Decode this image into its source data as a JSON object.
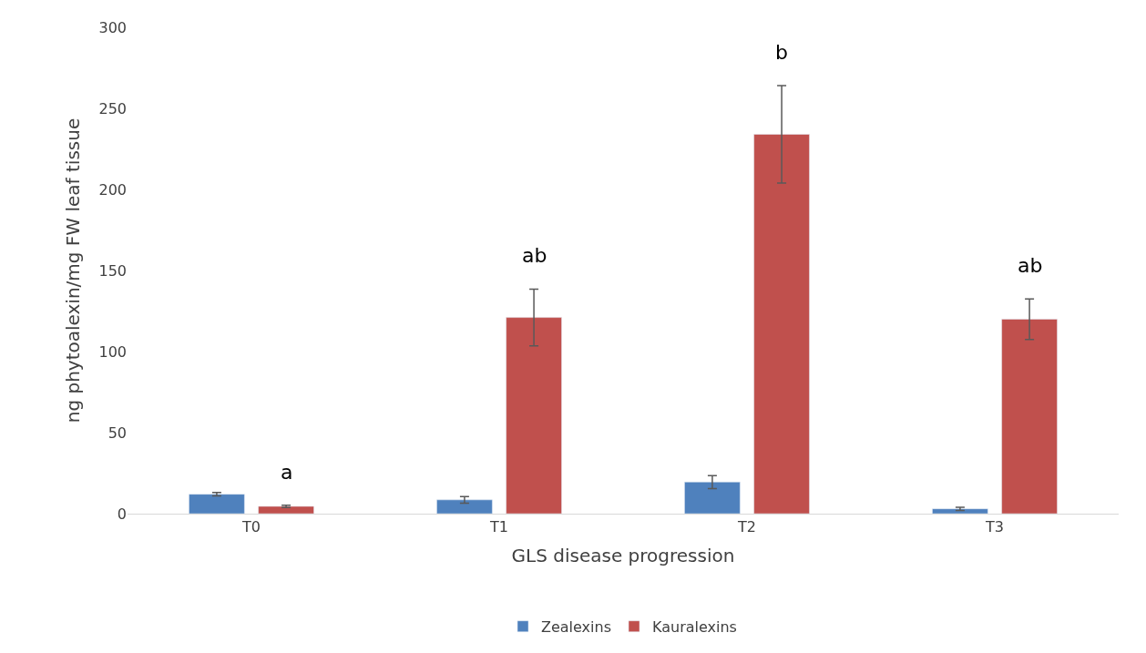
{
  "chart_data": {
    "type": "bar",
    "xlabel": "GLS disease progression",
    "ylabel": "ng phytoalexin/mg FW leaf tissue",
    "categories": [
      "T0",
      "T1",
      "T2",
      "T3"
    ],
    "series": [
      {
        "name": "Zealexins",
        "color": "#4f81bd",
        "values": [
          12,
          8.5,
          19.5,
          3
        ],
        "errors": [
          1,
          2,
          4,
          1
        ]
      },
      {
        "name": "Kauralexins",
        "color": "#c0504d",
        "values": [
          4.5,
          121,
          234,
          120
        ],
        "errors": [
          0.7,
          17.5,
          30,
          12.5
        ]
      }
    ],
    "ylim": [
      0,
      300
    ],
    "yticks": [
      0,
      50,
      100,
      150,
      200,
      250,
      300
    ],
    "grid": false,
    "legend": "bottom",
    "annotations": [
      "a",
      "ab",
      "b",
      "ab"
    ]
  }
}
